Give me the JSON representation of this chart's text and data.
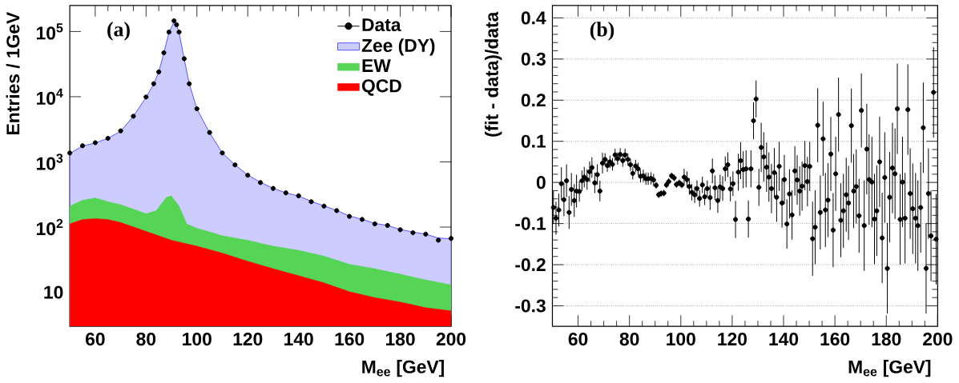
{
  "chart_data": [
    {
      "type": "area",
      "xlabel": "M$_{ee}$ [GeV]",
      "ylabel": "Entries / 1GeV",
      "annotations": [
        "(a)"
      ],
      "log": true,
      "legend": "top right",
      "xlim": [
        50,
        200
      ],
      "xticks": [
        60,
        80,
        100,
        120,
        140,
        160,
        180,
        200
      ],
      "ylim": [
        3,
        250000
      ],
      "yticks": [
        10,
        {
          "value": 100,
          "label": "10$^{2}$"
        },
        {
          "value": 1000,
          "label": "10$^{3}$"
        },
        {
          "value": 10000,
          "label": "10$^{4}$"
        },
        {
          "value": 100000,
          "label": "10$^{5}$"
        }
      ],
      "series": [
        {
          "name": "Data",
          "type": "scatter",
          "marker": "circle",
          "color": "#000000",
          "x": [
            50,
            55,
            60,
            65,
            70,
            75,
            80,
            83,
            85,
            87,
            89,
            91,
            92,
            93,
            95,
            97,
            100,
            105,
            110,
            115,
            120,
            125,
            130,
            135,
            140,
            145,
            150,
            155,
            160,
            165,
            170,
            175,
            180,
            185,
            190,
            195,
            200
          ],
          "values": [
            1370,
            1770,
            1970,
            2300,
            2990,
            5020,
            9900,
            15800,
            24000,
            47200,
            98000,
            146000,
            127000,
            98000,
            38300,
            15800,
            6520,
            2830,
            1370,
            900,
            625,
            482,
            392,
            335,
            302,
            245,
            210,
            179,
            146,
            131,
            112,
            106,
            91,
            82,
            78,
            63,
            67
          ]
        },
        {
          "name": "Zee (DY)",
          "color": "#ccccff",
          "x": [
            50,
            55,
            60,
            65,
            70,
            75,
            80,
            83,
            85,
            87,
            89,
            91,
            92,
            93,
            95,
            97,
            100,
            105,
            110,
            115,
            120,
            125,
            130,
            135,
            140,
            145,
            150,
            155,
            160,
            165,
            170,
            175,
            180,
            185,
            190,
            195,
            200
          ],
          "values": [
            1350,
            1750,
            1950,
            2300,
            2950,
            5000,
            9800,
            15600,
            24000,
            47000,
            97000,
            140000,
            125000,
            96000,
            38000,
            15800,
            6500,
            2800,
            1370,
            900,
            630,
            485,
            395,
            335,
            300,
            248,
            212,
            180,
            148,
            132,
            114,
            106,
            92,
            84,
            78,
            68,
            66
          ]
        },
        {
          "name": "EW",
          "color": "#55d455",
          "x": [
            50,
            55,
            60,
            65,
            70,
            75,
            80,
            84,
            88,
            90,
            93,
            96,
            100,
            110,
            120,
            130,
            140,
            150,
            160,
            170,
            180,
            190,
            200
          ],
          "values": [
            210,
            258,
            281,
            245,
            221,
            189,
            161,
            179,
            286,
            302,
            210,
            112,
            96,
            74,
            63,
            51,
            44,
            36,
            27,
            23,
            19,
            15.5,
            13
          ]
        },
        {
          "name": "QCD",
          "color": "#ff0000",
          "x": [
            50,
            55,
            60,
            65,
            70,
            80,
            90,
            100,
            110,
            120,
            130,
            140,
            150,
            160,
            170,
            180,
            190,
            200
          ],
          "values": [
            112,
            131,
            135,
            131,
            118,
            86,
            63,
            51,
            40,
            30,
            23,
            18,
            14,
            10.2,
            8.3,
            7.1,
            5.8,
            5.2
          ]
        }
      ]
    },
    {
      "type": "scatter",
      "xlabel": "M$_{ee}$ [GeV]",
      "ylabel": "(fit - data)/data",
      "annotations": [
        "(b)"
      ],
      "grid": "y",
      "xlim": [
        50,
        200
      ],
      "xticks": [
        60,
        80,
        100,
        120,
        140,
        160,
        180,
        200
      ],
      "ylim": [
        -0.35,
        0.43
      ],
      "yticks": [
        -0.3,
        -0.2,
        -0.1,
        0,
        0.1,
        0.2,
        0.3,
        0.4
      ],
      "series": [
        {
          "color": "#000000",
          "marker": "circle",
          "x": [
            50.4,
            51.4,
            52.5,
            53.5,
            54.5,
            55.5,
            56.5,
            57.4,
            58.5,
            59.4,
            60.5,
            61.5,
            62.4,
            63.5,
            64.5,
            65.4,
            66.5,
            67.5,
            68.5,
            69.5,
            70.5,
            71.4,
            72.4,
            73.4,
            74.4,
            75.4,
            76.4,
            77.4,
            78.3,
            79.4,
            80.4,
            81.3,
            82.4,
            83.4,
            84.3,
            85.4,
            86.4,
            87.3,
            88.4,
            89.4,
            90.4,
            91.4,
            92.3,
            93.4,
            94.4,
            95.3,
            96.4,
            97.4,
            98.3,
            99.4,
            100.4,
            101.3,
            102.4,
            103.3,
            104.3,
            105.4,
            106.3,
            107.3,
            108.4,
            109.3,
            110.3,
            111.4,
            112.3,
            113.3,
            114.4,
            115.3,
            116.3,
            117.3,
            118.3,
            119.3,
            120.3,
            121.3,
            122.4,
            123.3,
            124.3,
            125.4,
            126.3,
            127.3,
            128.3,
            129.3,
            130.4,
            131.3,
            132.3,
            133.4,
            134.3,
            135.3,
            136.4,
            137.3,
            138.3,
            139.4,
            140.3,
            141.3,
            142.3,
            143.3,
            144.4,
            145.3,
            146.3,
            147.2,
            148.3,
            149.3,
            150.2,
            151.3,
            152.3,
            153.3,
            154.3,
            155.4,
            156.3,
            157.3,
            158.4,
            159.3,
            160.3,
            161.4,
            162.3,
            163.3,
            164.4,
            165.3,
            166.4,
            167.3,
            168.3,
            169.4,
            170.3,
            171.4,
            172.4,
            173.3,
            174.4,
            175.4,
            176.3,
            177.4,
            178.4,
            179.4,
            180.4,
            181.3,
            182.4,
            183.4,
            184.3,
            185.4,
            186.3,
            187.3,
            188.4,
            189.3,
            190.3,
            191.4,
            192.3,
            193.4,
            194.4,
            195.5,
            196.4,
            197.4,
            198.4,
            199.4
          ],
          "values": [
            -0.061,
            -0.087,
            -0.067,
            -0.003,
            -0.042,
            0.004,
            -0.073,
            -0.017,
            -0.044,
            -0.021,
            -0.022,
            0.004,
            0.013,
            0.007,
            0.026,
            0.036,
            -0.001,
            0.019,
            -0.021,
            0.047,
            0.056,
            0.041,
            0.05,
            0.044,
            0.067,
            0.058,
            0.068,
            0.053,
            0.067,
            0.056,
            0.043,
            0.022,
            0.04,
            0.033,
            0.015,
            0.016,
            0.009,
            0.009,
            0.01,
            0.006,
            -0.007,
            -0.03,
            -0.027,
            -0.026,
            -0.006,
            0.002,
            0.016,
            0.011,
            -0.005,
            -0.001,
            -0.006,
            0.013,
            0.007,
            -0.01,
            -0.024,
            -0.03,
            -0.015,
            -0.039,
            -0.006,
            -0.035,
            -0.015,
            -0.037,
            0.028,
            -0.013,
            -0.044,
            -0.011,
            -0.015,
            0.033,
            0.043,
            -0.016,
            -0.003,
            -0.09,
            0.025,
            0.053,
            0.031,
            0.033,
            -0.089,
            0.033,
            0.15,
            0.203,
            -0.012,
            0.085,
            0.062,
            0.037,
            0.013,
            -0.015,
            0.024,
            -0.036,
            0.039,
            -0.05,
            0.007,
            -0.101,
            -0.028,
            -0.079,
            0.028,
            0.006,
            -0.021,
            -0.009,
            0.041,
            0.002,
            0.039,
            -0.137,
            -0.109,
            0.139,
            -0.073,
            0.106,
            -0.067,
            -0.043,
            0.069,
            -0.116,
            0.021,
            0.165,
            -0.092,
            -0.069,
            -0.03,
            -0.05,
            0.138,
            -0.021,
            -0.01,
            -0.081,
            0.175,
            -0.105,
            0.081,
            0.007,
            0.001,
            -0.089,
            -0.069,
            0.05,
            -0.135,
            0.012,
            -0.209,
            -0.036,
            0.035,
            0.021,
            0.179,
            -0.09,
            0.001,
            -0.087,
            0.177,
            -0.027,
            -0.064,
            -0.087,
            -0.105,
            -0.061,
            0.133,
            -0.209,
            -0.027,
            -0.13,
            0.219,
            -0.138
          ],
          "errors": [
            0.04,
            0.04,
            0.04,
            0.04,
            0.04,
            0.04,
            0.04,
            0.04,
            0.04,
            0.04,
            0.025,
            0.025,
            0.025,
            0.025,
            0.025,
            0.025,
            0.025,
            0.025,
            0.025,
            0.025,
            0.015,
            0.015,
            0.015,
            0.015,
            0.015,
            0.015,
            0.015,
            0.015,
            0.015,
            0.015,
            0.015,
            0.015,
            0.015,
            0.015,
            0.015,
            0.015,
            0.015,
            0.015,
            0.015,
            0.015,
            0.008,
            0.008,
            0.008,
            0.008,
            0.008,
            0.008,
            0.008,
            0.008,
            0.008,
            0.008,
            0.008,
            0.02,
            0.02,
            0.02,
            0.02,
            0.02,
            0.02,
            0.02,
            0.02,
            0.02,
            0.02,
            0.03,
            0.03,
            0.03,
            0.03,
            0.03,
            0.03,
            0.03,
            0.03,
            0.03,
            0.03,
            0.045,
            0.045,
            0.045,
            0.045,
            0.045,
            0.045,
            0.045,
            0.045,
            0.045,
            0.045,
            0.06,
            0.06,
            0.06,
            0.06,
            0.06,
            0.06,
            0.06,
            0.06,
            0.06,
            0.06,
            0.06,
            0.06,
            0.06,
            0.06,
            0.06,
            0.06,
            0.06,
            0.06,
            0.06,
            0.06,
            0.09,
            0.09,
            0.09,
            0.09,
            0.09,
            0.09,
            0.09,
            0.09,
            0.09,
            0.09,
            0.09,
            0.09,
            0.09,
            0.09,
            0.09,
            0.09,
            0.09,
            0.09,
            0.09,
            0.09,
            0.11,
            0.11,
            0.11,
            0.11,
            0.11,
            0.11,
            0.11,
            0.11,
            0.11,
            0.11,
            0.11,
            0.11,
            0.11,
            0.11,
            0.11,
            0.11,
            0.11,
            0.11,
            0.11,
            0.11,
            0.11,
            0.11,
            0.11,
            0.11,
            0.11,
            0.11,
            0.11,
            0.11,
            0.11
          ]
        }
      ]
    }
  ]
}
